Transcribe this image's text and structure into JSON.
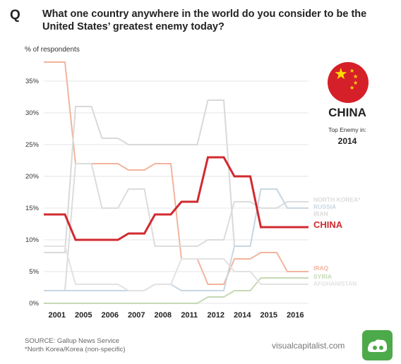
{
  "header": {
    "q_mark": "Q",
    "title": "What one country anywhere in the world do you consider to be the United States’ greatest enemy today?"
  },
  "highlight": {
    "country": "CHINA",
    "caption": "Top Enemy in:",
    "year": "2014",
    "flag_icon": "china-flag-icon"
  },
  "footer": {
    "source": "SOURCE: Gallup News Service",
    "note": "*North Korea/Korea (non-specific)",
    "brand": "visualcapitalist.com",
    "brand_icon": "visual-capitalist-logo-icon"
  },
  "chart_data": {
    "type": "line",
    "unit_label": "% of respondents",
    "x": [
      2001,
      2005,
      2006,
      2007,
      2008,
      2011,
      2012,
      2014,
      2015,
      2016
    ],
    "xlim": [
      2001,
      2016
    ],
    "ylim": [
      0,
      38
    ],
    "y_ticks": [
      0,
      5,
      10,
      15,
      20,
      25,
      30,
      35
    ],
    "y_tick_labels": [
      "0%",
      "5%",
      "10%",
      "15%",
      "20%",
      "25%",
      "30%",
      "35%"
    ],
    "grid": true,
    "style": "step",
    "series": [
      {
        "name": "IRAQ",
        "color": "#f2b49e",
        "values": [
          38,
          22,
          22,
          21,
          22,
          7,
          3,
          7,
          8,
          5
        ]
      },
      {
        "name": "IRAN",
        "color": "#d9d9d9",
        "values": [
          8,
          31,
          26,
          25,
          25,
          25,
          32,
          9,
          18,
          15
        ]
      },
      {
        "name": "NORTH KOREA*",
        "color": "#dcdcdc",
        "values": [
          2,
          22,
          15,
          18,
          9,
          9,
          10,
          16,
          15,
          16
        ]
      },
      {
        "name": "RUSSIA",
        "color": "#c9d7e2",
        "values": [
          2,
          2,
          2,
          2,
          3,
          2,
          2,
          9,
          18,
          15
        ]
      },
      {
        "name": "SYRIA",
        "color": "#c5d9b5",
        "values": [
          0,
          0,
          0,
          0,
          0,
          0,
          1,
          2,
          4,
          4
        ]
      },
      {
        "name": "AFGHANISTAN",
        "color": "#e2e2e2",
        "values": [
          9,
          3,
          3,
          2,
          3,
          7,
          7,
          5,
          3,
          3
        ]
      },
      {
        "name": "CHINA",
        "color": "#d02a2f",
        "values": [
          14,
          10,
          10,
          11,
          14,
          16,
          23,
          20,
          12,
          12
        ]
      }
    ],
    "highlight_series": "CHINA"
  }
}
